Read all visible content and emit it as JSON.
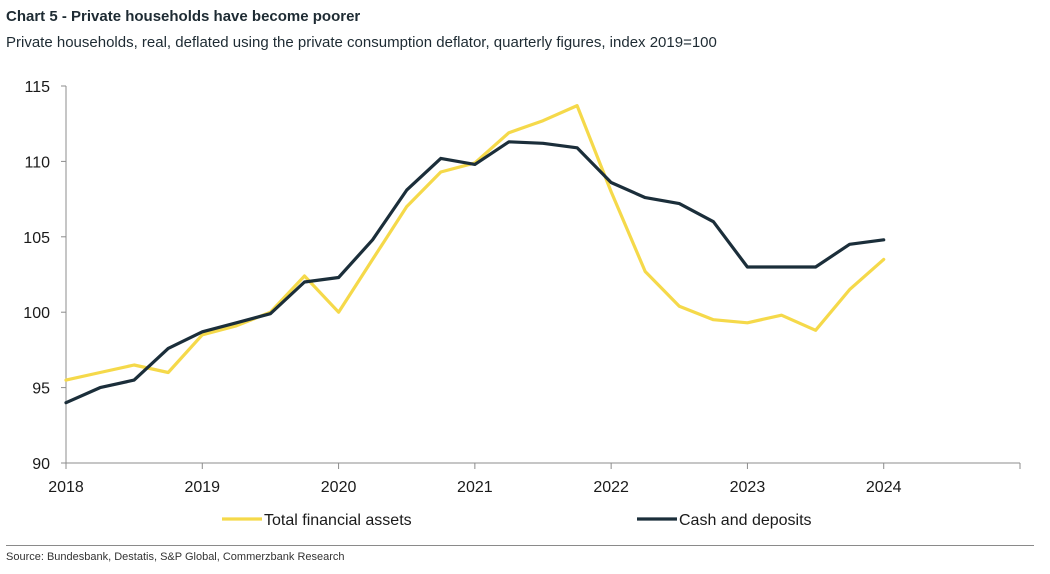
{
  "title": "Chart 5 - Private households have become poorer",
  "subtitle": "Private households, real, deflated using the private consumption deflator, quarterly figures, index 2019=100",
  "source": "Source: Bundesbank, Destatis, S&P Global, Commerzbank Research",
  "chart_data": {
    "type": "line",
    "x_tick_labels": [
      "2018",
      "2019",
      "2020",
      "2021",
      "2022",
      "2023",
      "2024"
    ],
    "y_tick_labels": [
      "90",
      "95",
      "100",
      "105",
      "110",
      "115"
    ],
    "xlim": [
      2018,
      2025
    ],
    "ylim": [
      90,
      115
    ],
    "grid": false,
    "legend_position": "bottom",
    "series": [
      {
        "name": "Total financial assets",
        "color": "#f5d94a",
        "x": [
          2018.0,
          2018.25,
          2018.5,
          2018.75,
          2019.0,
          2019.25,
          2019.5,
          2019.75,
          2020.0,
          2020.25,
          2020.5,
          2020.75,
          2021.0,
          2021.25,
          2021.5,
          2021.75,
          2022.0,
          2022.25,
          2022.5,
          2022.75,
          2023.0,
          2023.25,
          2023.5,
          2023.75,
          2024.0
        ],
        "values": [
          95.5,
          96.0,
          96.5,
          96.0,
          98.5,
          99.1,
          100.0,
          102.4,
          100.0,
          103.5,
          107.0,
          109.3,
          109.9,
          111.9,
          112.7,
          113.7,
          108.0,
          102.7,
          100.4,
          99.5,
          99.3,
          99.8,
          98.8,
          101.5,
          103.5
        ]
      },
      {
        "name": "Cash and deposits",
        "color": "#1b2e3a",
        "x": [
          2018.0,
          2018.25,
          2018.5,
          2018.75,
          2019.0,
          2019.25,
          2019.5,
          2019.75,
          2020.0,
          2020.25,
          2020.5,
          2020.75,
          2021.0,
          2021.25,
          2021.5,
          2021.75,
          2022.0,
          2022.25,
          2022.5,
          2022.75,
          2023.0,
          2023.25,
          2023.5,
          2023.75,
          2024.0
        ],
        "values": [
          94.0,
          95.0,
          95.5,
          97.6,
          98.7,
          99.3,
          99.9,
          102.0,
          102.3,
          104.8,
          108.1,
          110.2,
          109.8,
          111.3,
          111.2,
          110.9,
          108.6,
          107.6,
          107.2,
          106.0,
          103.0,
          103.0,
          103.0,
          104.5,
          104.8
        ]
      }
    ]
  }
}
